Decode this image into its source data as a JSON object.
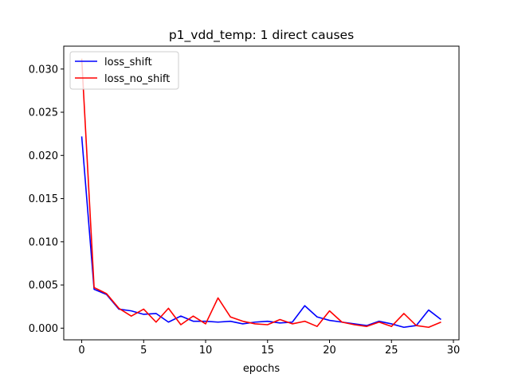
{
  "chart_data": {
    "type": "line",
    "title": "p1_vdd_temp: 1 direct causes",
    "xlabel": "epochs",
    "ylabel": "",
    "xlim": [
      -1.45,
      30.45
    ],
    "ylim": [
      -0.00135,
      0.03265
    ],
    "xticks": [
      0,
      5,
      10,
      15,
      20,
      25,
      30
    ],
    "xtick_labels": [
      "0",
      "5",
      "10",
      "15",
      "20",
      "25",
      "30"
    ],
    "yticks": [
      0.0,
      0.005,
      0.01,
      0.015,
      0.02,
      0.025,
      0.03
    ],
    "ytick_labels": [
      "0.000",
      "0.005",
      "0.010",
      "0.015",
      "0.020",
      "0.025",
      "0.030"
    ],
    "grid": false,
    "legend_position": "top-left",
    "x": [
      0,
      1,
      2,
      3,
      4,
      5,
      6,
      7,
      8,
      9,
      10,
      11,
      12,
      13,
      14,
      15,
      16,
      17,
      18,
      19,
      20,
      21,
      22,
      23,
      24,
      25,
      26,
      27,
      28,
      29
    ],
    "series": [
      {
        "name": "loss_shift",
        "color": "#0000ff",
        "values": [
          0.0222,
          0.0045,
          0.0039,
          0.0022,
          0.002,
          0.0016,
          0.0017,
          0.0007,
          0.0014,
          0.0008,
          0.0008,
          0.0007,
          0.0008,
          0.0005,
          0.0007,
          0.0008,
          0.0006,
          0.0007,
          0.0026,
          0.0013,
          0.0009,
          0.0007,
          0.0005,
          0.0003,
          0.0008,
          0.0005,
          0.0001,
          0.0003,
          0.0021,
          0.001
        ]
      },
      {
        "name": "loss_no_shift",
        "color": "#ff0000",
        "values": [
          0.0312,
          0.0047,
          0.004,
          0.0023,
          0.0014,
          0.0022,
          0.0007,
          0.0023,
          0.0004,
          0.0014,
          0.0005,
          0.0035,
          0.0013,
          0.0008,
          0.0005,
          0.0004,
          0.001,
          0.0005,
          0.0008,
          0.0002,
          0.002,
          0.0007,
          0.0004,
          0.0002,
          0.0007,
          0.0002,
          0.0017,
          0.0003,
          0.0001,
          0.0007
        ]
      }
    ]
  }
}
